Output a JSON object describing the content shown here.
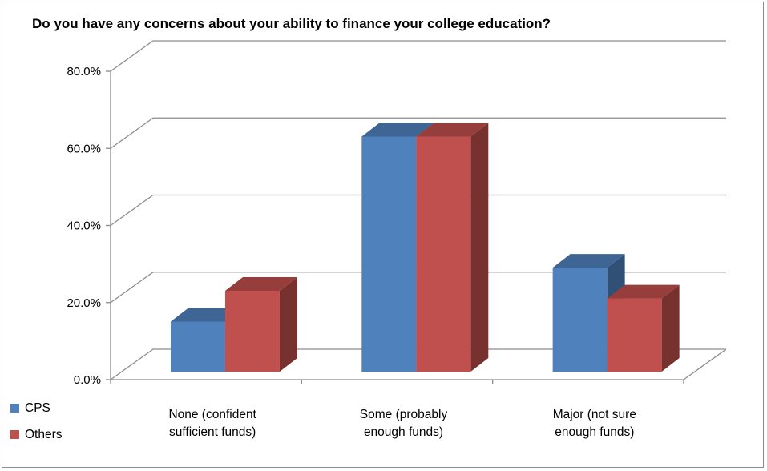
{
  "chart_data": {
    "type": "bar",
    "title": "Do you have any concerns about your ability to finance your college education?",
    "xlabel": "",
    "ylabel": "",
    "ylim": [
      0,
      80
    ],
    "yticks": [
      "0.0%",
      "20.0%",
      "40.0%",
      "60.0%",
      "80.0%"
    ],
    "grid": true,
    "legend_position": "bottom-left",
    "categories": [
      [
        "None (confident",
        "sufficient funds)"
      ],
      [
        "Some (probably",
        "enough funds)"
      ],
      [
        "Major (not sure",
        "enough funds)"
      ]
    ],
    "series": [
      {
        "name": "CPS",
        "values": [
          13,
          61,
          27
        ],
        "color": "#4f81bd"
      },
      {
        "name": "Others",
        "values": [
          21,
          61,
          19
        ],
        "color": "#c0504d"
      }
    ]
  }
}
